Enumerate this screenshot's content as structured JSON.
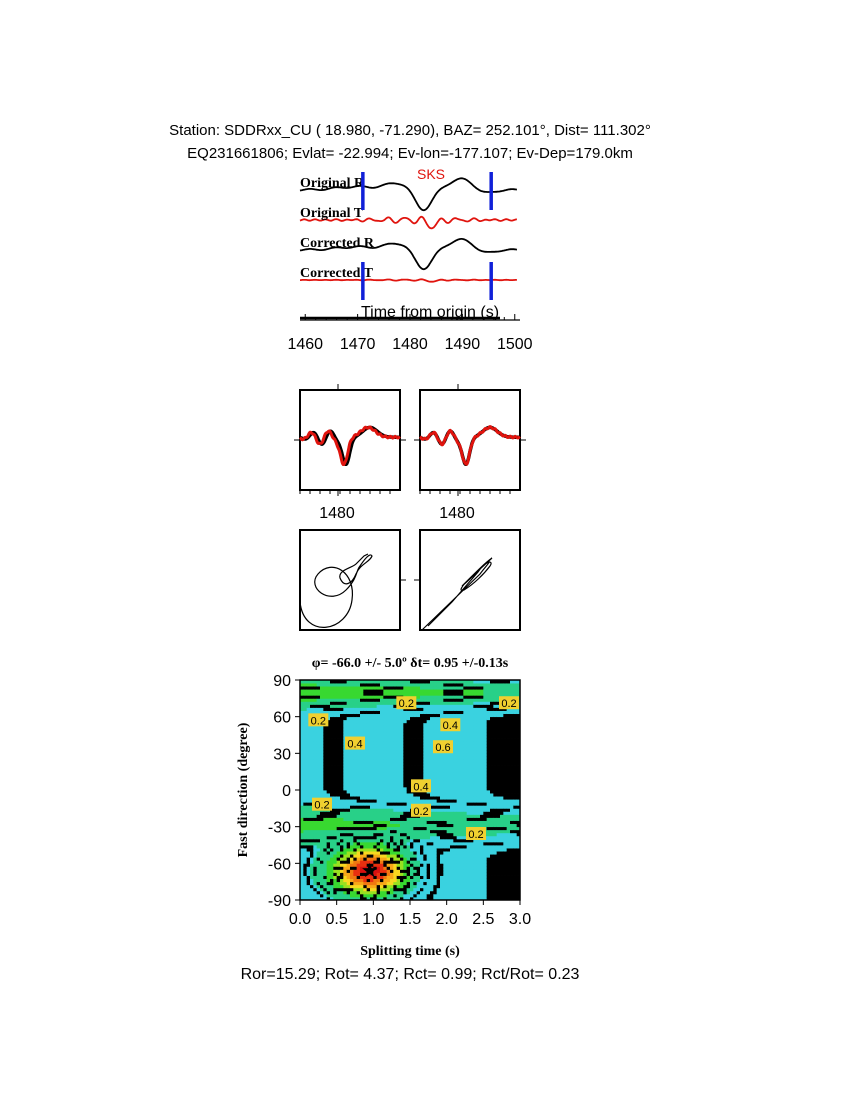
{
  "header": {
    "line1": "Station: SDDRxx_CU (  18.980,  -71.290), BAZ=  252.101°, Dist=  111.302°",
    "line2": "EQ231661806; Evlat= -22.994; Ev-lon=-177.107; Ev-Dep=179.0km"
  },
  "colors": {
    "black": "#000000",
    "red": "#e0140e",
    "blue": "#1020d8",
    "phase": "#e0140e"
  },
  "waveform_panel": {
    "phase_label": "SKS",
    "traces": [
      {
        "label": "Original R",
        "color": "black"
      },
      {
        "label": "Original T",
        "color": "red"
      },
      {
        "label": "Corrected R",
        "color": "black"
      },
      {
        "label": "Corrected T",
        "color": "red"
      }
    ],
    "window_start": 1471,
    "window_end": 1495.5,
    "xlabel": "Time from origin (s)",
    "xlim": [
      1459,
      1501
    ],
    "ticks": [
      1460,
      1470,
      1480,
      1490,
      1500
    ]
  },
  "particle_panels": {
    "wave_tick_label": "1480",
    "wave_xlim": [
      1470,
      1495
    ]
  },
  "chart_data": [
    {
      "type": "line",
      "name": "waveforms",
      "xlabel": "Time from origin (s)",
      "xlim": [
        1459,
        1501
      ],
      "ticks": [
        1460,
        1470,
        1480,
        1490,
        1500
      ],
      "series": [
        {
          "name": "Original R",
          "color": "black"
        },
        {
          "name": "Original T",
          "color": "red"
        },
        {
          "name": "Corrected R",
          "color": "black"
        },
        {
          "name": "Corrected T",
          "color": "red"
        }
      ],
      "annotations": [
        "SKS"
      ]
    },
    {
      "type": "heatmap",
      "name": "grid-search",
      "title": "φ= -66.0 +/- 5.0º δt= 0.95 +/-0.13s",
      "xlabel": "Splitting time (s)",
      "ylabel": "Fast direction (degree)",
      "xlim": [
        0,
        3
      ],
      "ylim": [
        -90,
        90
      ],
      "xticks": [
        "0.0",
        "0.5",
        "1.0",
        "1.5",
        "2.0",
        "2.5",
        "3.0"
      ],
      "yticks": [
        "-90",
        "-60",
        "-30",
        "0",
        "30",
        "60",
        "90"
      ],
      "best": {
        "dt": 0.95,
        "phi": -66.0
      },
      "contour_labels": [
        {
          "text": "0.2",
          "x": 0.25,
          "y": 57
        },
        {
          "text": "0.2",
          "x": 1.45,
          "y": 71
        },
        {
          "text": "0.2",
          "x": 2.85,
          "y": 71
        },
        {
          "text": "0.4",
          "x": 2.05,
          "y": 53
        },
        {
          "text": "0.4",
          "x": 0.75,
          "y": 38
        },
        {
          "text": "0.6",
          "x": 1.95,
          "y": 35
        },
        {
          "text": "0.4",
          "x": 1.65,
          "y": 3
        },
        {
          "text": "0.2",
          "x": 0.3,
          "y": -12
        },
        {
          "text": "0.2",
          "x": 1.65,
          "y": -17
        },
        {
          "text": "0.2",
          "x": 2.4,
          "y": -36
        }
      ]
    }
  ],
  "footer": {
    "text": "Ror=15.29; Rot= 4.37; Rct= 0.99; Rct/Rot= 0.23"
  }
}
